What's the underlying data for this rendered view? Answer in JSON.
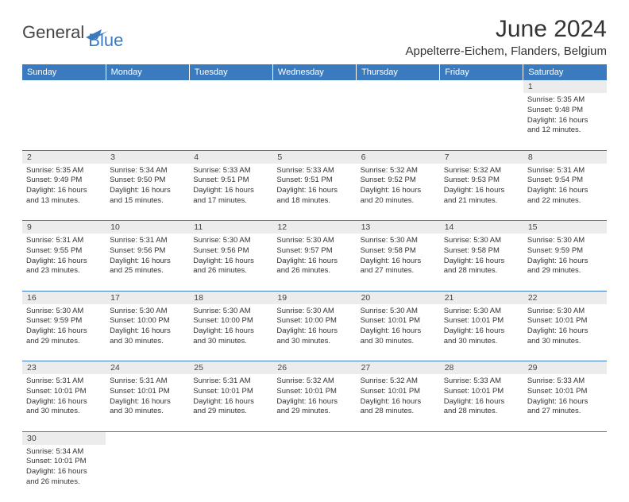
{
  "brand": {
    "general": "General",
    "blue": "Blue"
  },
  "title": "June 2024",
  "location": "Appelterre-Eichem, Flanders, Belgium",
  "colors": {
    "header_bg": "#3a7bbf",
    "header_fg": "#ffffff",
    "daynum_bg": "#ececec",
    "border": "#3a7bbf",
    "text": "#333333"
  },
  "weekdays": [
    "Sunday",
    "Monday",
    "Tuesday",
    "Wednesday",
    "Thursday",
    "Friday",
    "Saturday"
  ],
  "weeks": [
    [
      null,
      null,
      null,
      null,
      null,
      null,
      {
        "n": "1",
        "sr": "5:35 AM",
        "ss": "9:48 PM",
        "dh": "16",
        "dm": "12"
      }
    ],
    [
      {
        "n": "2",
        "sr": "5:35 AM",
        "ss": "9:49 PM",
        "dh": "16",
        "dm": "13"
      },
      {
        "n": "3",
        "sr": "5:34 AM",
        "ss": "9:50 PM",
        "dh": "16",
        "dm": "15"
      },
      {
        "n": "4",
        "sr": "5:33 AM",
        "ss": "9:51 PM",
        "dh": "16",
        "dm": "17"
      },
      {
        "n": "5",
        "sr": "5:33 AM",
        "ss": "9:51 PM",
        "dh": "16",
        "dm": "18"
      },
      {
        "n": "6",
        "sr": "5:32 AM",
        "ss": "9:52 PM",
        "dh": "16",
        "dm": "20"
      },
      {
        "n": "7",
        "sr": "5:32 AM",
        "ss": "9:53 PM",
        "dh": "16",
        "dm": "21"
      },
      {
        "n": "8",
        "sr": "5:31 AM",
        "ss": "9:54 PM",
        "dh": "16",
        "dm": "22"
      }
    ],
    [
      {
        "n": "9",
        "sr": "5:31 AM",
        "ss": "9:55 PM",
        "dh": "16",
        "dm": "23"
      },
      {
        "n": "10",
        "sr": "5:31 AM",
        "ss": "9:56 PM",
        "dh": "16",
        "dm": "25"
      },
      {
        "n": "11",
        "sr": "5:30 AM",
        "ss": "9:56 PM",
        "dh": "16",
        "dm": "26"
      },
      {
        "n": "12",
        "sr": "5:30 AM",
        "ss": "9:57 PM",
        "dh": "16",
        "dm": "26"
      },
      {
        "n": "13",
        "sr": "5:30 AM",
        "ss": "9:58 PM",
        "dh": "16",
        "dm": "27"
      },
      {
        "n": "14",
        "sr": "5:30 AM",
        "ss": "9:58 PM",
        "dh": "16",
        "dm": "28"
      },
      {
        "n": "15",
        "sr": "5:30 AM",
        "ss": "9:59 PM",
        "dh": "16",
        "dm": "29"
      }
    ],
    [
      {
        "n": "16",
        "sr": "5:30 AM",
        "ss": "9:59 PM",
        "dh": "16",
        "dm": "29"
      },
      {
        "n": "17",
        "sr": "5:30 AM",
        "ss": "10:00 PM",
        "dh": "16",
        "dm": "30"
      },
      {
        "n": "18",
        "sr": "5:30 AM",
        "ss": "10:00 PM",
        "dh": "16",
        "dm": "30"
      },
      {
        "n": "19",
        "sr": "5:30 AM",
        "ss": "10:00 PM",
        "dh": "16",
        "dm": "30"
      },
      {
        "n": "20",
        "sr": "5:30 AM",
        "ss": "10:01 PM",
        "dh": "16",
        "dm": "30"
      },
      {
        "n": "21",
        "sr": "5:30 AM",
        "ss": "10:01 PM",
        "dh": "16",
        "dm": "30"
      },
      {
        "n": "22",
        "sr": "5:30 AM",
        "ss": "10:01 PM",
        "dh": "16",
        "dm": "30"
      }
    ],
    [
      {
        "n": "23",
        "sr": "5:31 AM",
        "ss": "10:01 PM",
        "dh": "16",
        "dm": "30"
      },
      {
        "n": "24",
        "sr": "5:31 AM",
        "ss": "10:01 PM",
        "dh": "16",
        "dm": "30"
      },
      {
        "n": "25",
        "sr": "5:31 AM",
        "ss": "10:01 PM",
        "dh": "16",
        "dm": "29"
      },
      {
        "n": "26",
        "sr": "5:32 AM",
        "ss": "10:01 PM",
        "dh": "16",
        "dm": "29"
      },
      {
        "n": "27",
        "sr": "5:32 AM",
        "ss": "10:01 PM",
        "dh": "16",
        "dm": "28"
      },
      {
        "n": "28",
        "sr": "5:33 AM",
        "ss": "10:01 PM",
        "dh": "16",
        "dm": "28"
      },
      {
        "n": "29",
        "sr": "5:33 AM",
        "ss": "10:01 PM",
        "dh": "16",
        "dm": "27"
      }
    ],
    [
      {
        "n": "30",
        "sr": "5:34 AM",
        "ss": "10:01 PM",
        "dh": "16",
        "dm": "26"
      },
      null,
      null,
      null,
      null,
      null,
      null
    ]
  ],
  "labels": {
    "sunrise": "Sunrise:",
    "sunset": "Sunset:",
    "daylight_pre": "Daylight:",
    "hours": "hours",
    "and": "and",
    "minutes": "minutes."
  }
}
